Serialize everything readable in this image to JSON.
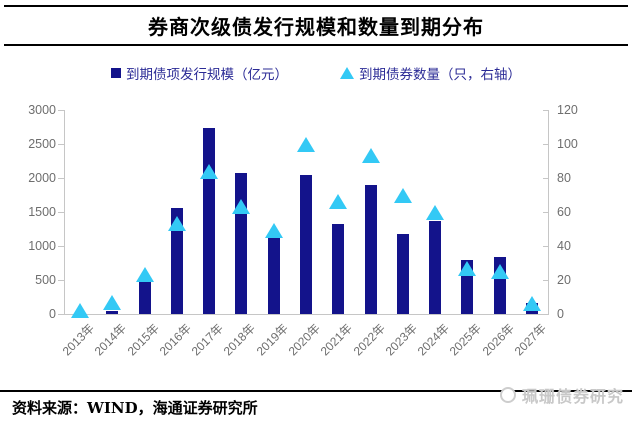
{
  "title": "券商次级债发行规模和数量到期分布",
  "legend": [
    {
      "label": "到期债项发行规模（亿元）",
      "marker": "square-marker-icon",
      "color": "#13138B"
    },
    {
      "label": "到期债券数量（只，右轴）",
      "marker": "triangle-marker-icon",
      "color": "#33C9F5"
    }
  ],
  "chart_data": {
    "type": "bar",
    "title": "券商次级债发行规模和数量到期分布",
    "categories": [
      "2013年",
      "2014年",
      "2015年",
      "2016年",
      "2017年",
      "2018年",
      "2019年",
      "2020年",
      "2021年",
      "2022年",
      "2023年",
      "2024年",
      "2025年",
      "2026年",
      "2027年"
    ],
    "series": [
      {
        "name": "到期债项发行规模（亿元）",
        "type": "bar",
        "axis": "left",
        "color": "#13138B",
        "values": [
          5,
          45,
          530,
          1560,
          2730,
          2070,
          1150,
          2050,
          1330,
          1900,
          1180,
          1370,
          800,
          835,
          160
        ]
      },
      {
        "name": "到期债券数量（只，右轴）",
        "type": "scatter",
        "marker": "triangle",
        "axis": "right",
        "color": "#33C9F5",
        "values": [
          2,
          7,
          23,
          53,
          84,
          63,
          49,
          100,
          66,
          93,
          70,
          60,
          27,
          25,
          6
        ]
      }
    ],
    "left_axis": {
      "min": 0,
      "max": 3000,
      "ticks": [
        0,
        500,
        1000,
        1500,
        2000,
        2500,
        3000
      ]
    },
    "right_axis": {
      "min": 0,
      "max": 120,
      "ticks": [
        0,
        20,
        40,
        60,
        80,
        100,
        120
      ]
    },
    "grid": false,
    "legend_position": "top"
  },
  "footer": {
    "source": "资料来源：WIND，海通证券研究所"
  },
  "watermark": {
    "text": "珮珊债券研究"
  }
}
